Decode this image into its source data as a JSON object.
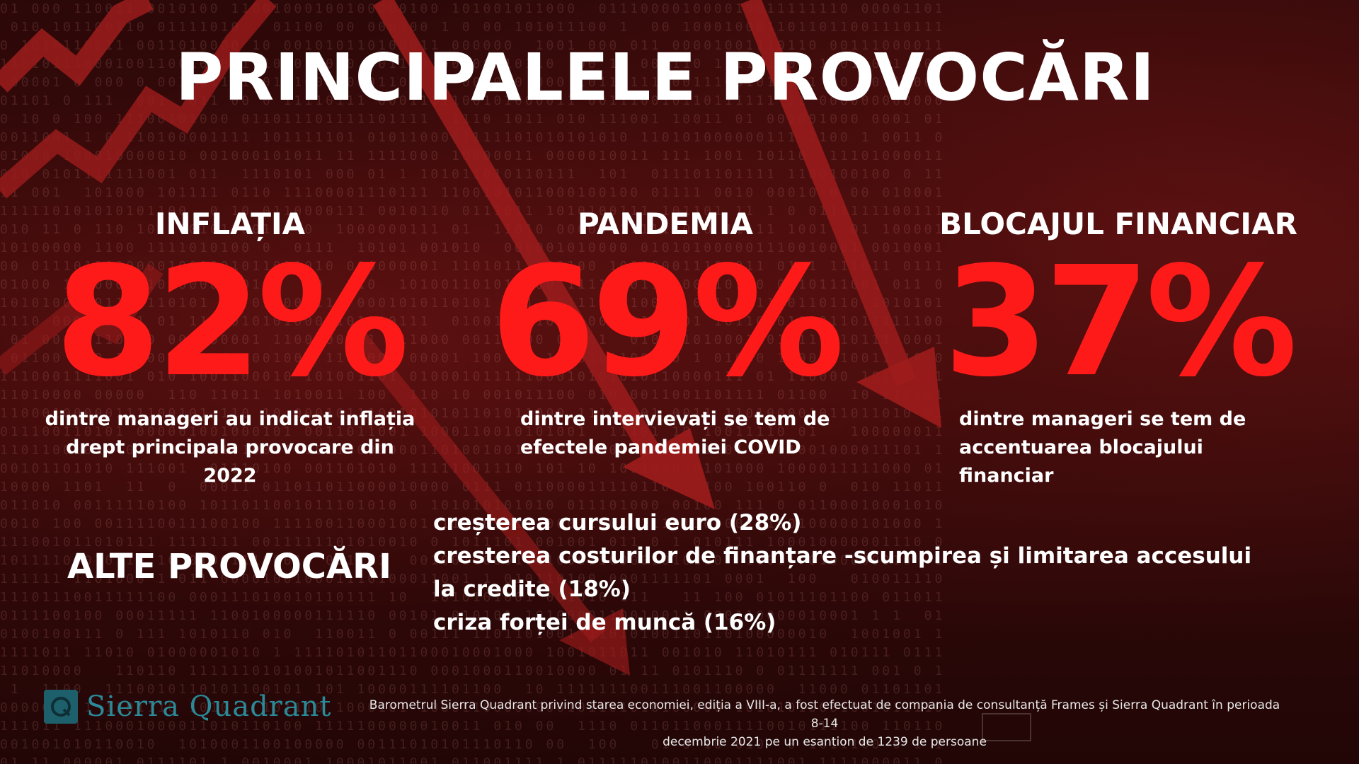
{
  "title": "PRINCIPALELE PROVOCĂRI",
  "stats": [
    {
      "label": "INFLAȚIA",
      "value": "82%",
      "desc_line1": "dintre manageri au indicat inflația",
      "desc_line2": "drept principala provocare din 2022"
    },
    {
      "label": "PANDEMIA",
      "value": "69%",
      "desc_line1": "dintre intervievați se tem de",
      "desc_line2": "efectele pandemiei COVID"
    },
    {
      "label": "BLOCAJUL FINANCIAR",
      "value": "37%",
      "desc_line1": "dintre manageri se tem de",
      "desc_line2": "accentuarea blocajului financiar"
    }
  ],
  "other": {
    "heading": "ALTE PROVOCĂRI",
    "items": [
      "creșterea cursului euro (28%)",
      "cresterea costurilor de finanțare -scumpirea și limitarea accesului la credite (18%)",
      "criza forței de muncă (16%)"
    ]
  },
  "logo": {
    "text": "Sierra Quadrant",
    "icon": "sierra-quadrant-logo-icon"
  },
  "footnote": {
    "line1": "Barometrul Sierra Quadrant privind starea economiei, ediția a VIII-a, a fost efectuat de compania de consultanță Frames și Sierra Quadrant în perioada 8-14",
    "line2": "decembrie 2021 pe un esantion de 1239 de persoane"
  },
  "colors": {
    "accent_red": "#ff1a1a",
    "arrow_red": "#9e1c1c",
    "background": "#2a0808",
    "logo_teal": "#1d5f6b"
  }
}
